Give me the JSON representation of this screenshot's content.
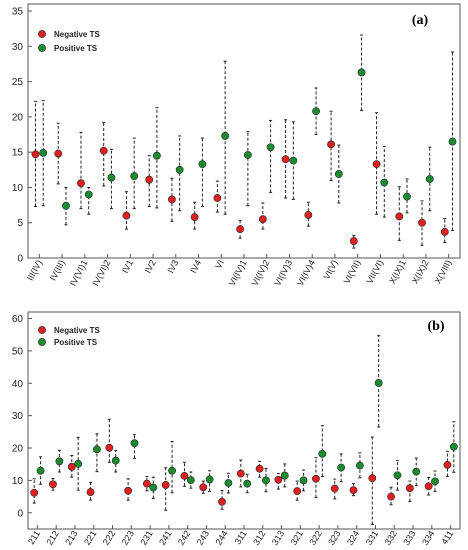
{
  "chart_data": [
    {
      "type": "scatter",
      "panel_label": "(a)",
      "categories": [
        "III(IV)",
        "IV(III)",
        "IV(VI)1",
        "IV(VI)2",
        "IV1",
        "IV2",
        "IV3",
        "IV4",
        "VI",
        "VI(IV)1",
        "VI(IV)2",
        "VI(IV)3",
        "VI(IV)4",
        "VI(V)",
        "VI(VII)",
        "VII(VI)",
        "X(IX)1",
        "X(IX)2",
        "X(VIII)"
      ],
      "ylim": [
        0,
        36
      ],
      "yticks": [
        0,
        5,
        10,
        15,
        20,
        25,
        30,
        35
      ],
      "grid": false,
      "legend": "top-left",
      "series": [
        {
          "name": "Negative TS",
          "color": "#e02020",
          "values": [
            14.7,
            14.8,
            10.6,
            15.2,
            6.0,
            11.1,
            8.3,
            5.8,
            8.5,
            4.1,
            5.5,
            14.0,
            6.1,
            16.1,
            2.4,
            13.3,
            5.9,
            5.0,
            3.7
          ],
          "lower": [
            7.3,
            10.5,
            7.0,
            10.2,
            4.1,
            7.3,
            5.2,
            4.1,
            6.5,
            2.8,
            4.1,
            8.5,
            4.5,
            11.0,
            1.4,
            6.2,
            2.5,
            1.8,
            2.2
          ],
          "upper": [
            22.2,
            19.1,
            17.8,
            19.2,
            9.4,
            14.5,
            11.3,
            7.9,
            10.9,
            5.3,
            7.8,
            19.6,
            7.9,
            20.8,
            3.2,
            20.6,
            10.1,
            8.1,
            5.6
          ]
        },
        {
          "name": "Positive TS",
          "color": "#1a8c2e",
          "values": [
            14.9,
            7.4,
            9.0,
            11.4,
            11.6,
            14.5,
            12.5,
            13.3,
            17.3,
            14.6,
            15.7,
            13.8,
            20.8,
            11.9,
            26.3,
            10.7,
            8.7,
            11.2,
            16.5
          ],
          "lower": [
            7.4,
            4.7,
            6.2,
            7.0,
            7.0,
            7.1,
            6.7,
            7.3,
            6.2,
            7.4,
            9.3,
            8.3,
            17.5,
            7.8,
            20.9,
            5.8,
            6.4,
            6.7,
            3.9
          ],
          "upper": [
            22.3,
            10.0,
            10.0,
            15.4,
            17.0,
            21.3,
            17.3,
            17.0,
            27.9,
            17.9,
            19.5,
            19.3,
            24.1,
            16.0,
            31.6,
            15.8,
            11.2,
            15.7,
            29.2
          ]
        }
      ]
    },
    {
      "type": "scatter",
      "panel_label": "(b)",
      "categories": [
        "211",
        "212",
        "213",
        "221",
        "222",
        "223",
        "231",
        "241",
        "242",
        "243",
        "244",
        "311",
        "312",
        "313",
        "321",
        "322",
        "323",
        "324",
        "331",
        "332",
        "333",
        "334",
        "411"
      ],
      "ylim": [
        -5,
        62
      ],
      "yticks": [
        0,
        10,
        20,
        30,
        40,
        50,
        60
      ],
      "grid": false,
      "legend": "top-left",
      "series": [
        {
          "name": "Negative TS",
          "color": "#e02020",
          "values": [
            6.2,
            8.8,
            14.2,
            6.4,
            20.1,
            6.8,
            9.0,
            8.6,
            11.4,
            7.9,
            3.4,
            12.1,
            13.6,
            10.2,
            6.7,
            10.5,
            7.5,
            7.0,
            10.7,
            5.0,
            7.6,
            8.2,
            14.8
          ],
          "lower": [
            3.0,
            7.0,
            11.0,
            3.9,
            15.6,
            3.9,
            6.8,
            0.8,
            8.2,
            6.0,
            1.1,
            8.0,
            11.0,
            7.3,
            3.9,
            4.7,
            4.3,
            5.3,
            -3.6,
            2.5,
            3.5,
            5.5,
            11.2
          ],
          "upper": [
            10.5,
            10.6,
            17.7,
            9.4,
            28.9,
            10.5,
            11.2,
            13.9,
            15.6,
            9.8,
            6.9,
            16.3,
            15.9,
            12.1,
            9.8,
            17.0,
            10.4,
            9.0,
            23.4,
            7.9,
            9.8,
            10.9,
            19.0
          ]
        },
        {
          "name": "Positive TS",
          "color": "#1a8c2e",
          "values": [
            13.0,
            15.9,
            15.1,
            19.6,
            16.1,
            21.5,
            7.8,
            13.0,
            10.1,
            10.3,
            9.2,
            9.0,
            10.0,
            11.5,
            10.0,
            18.2,
            14.0,
            14.6,
            40.1,
            11.6,
            12.7,
            9.7,
            20.4
          ],
          "lower": [
            8.8,
            12.6,
            7.0,
            12.7,
            12.6,
            16.8,
            4.4,
            6.2,
            7.6,
            6.6,
            6.1,
            6.2,
            6.5,
            8.0,
            6.8,
            11.2,
            9.6,
            10.8,
            26.5,
            7.0,
            8.4,
            6.6,
            12.5
          ],
          "upper": [
            17.3,
            19.3,
            23.3,
            24.4,
            19.3,
            24.1,
            11.0,
            22.0,
            12.6,
            13.0,
            12.2,
            11.9,
            13.7,
            15.1,
            13.2,
            26.9,
            18.2,
            18.5,
            54.7,
            16.1,
            16.9,
            12.9,
            28.1
          ]
        }
      ]
    }
  ]
}
